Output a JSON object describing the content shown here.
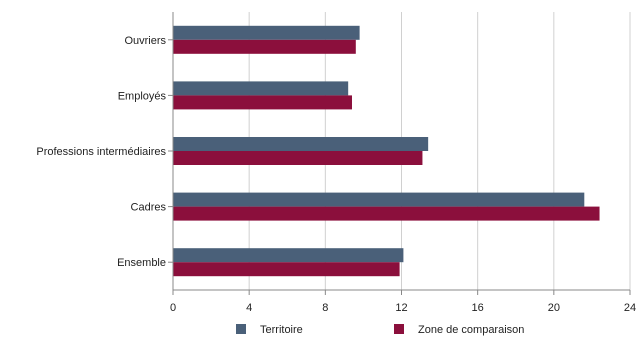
{
  "chart_data": {
    "type": "bar",
    "orientation": "horizontal",
    "categories": [
      "Ouvriers",
      "Employés",
      "Professions intermédiaires",
      "Cadres",
      "Ensemble"
    ],
    "series": [
      {
        "name": "Territoire",
        "color": "#4a6079",
        "values": [
          9.8,
          9.2,
          13.4,
          21.6,
          12.1
        ]
      },
      {
        "name": "Zone de comparaison",
        "color": "#8b0f3c",
        "values": [
          9.6,
          9.4,
          13.1,
          22.4,
          11.9
        ]
      }
    ],
    "x_ticks": [
      "0",
      "4",
      "8",
      "12",
      "16",
      "20",
      "24"
    ],
    "xlim": [
      0,
      24
    ],
    "grid": true,
    "legend_position": "bottom"
  }
}
